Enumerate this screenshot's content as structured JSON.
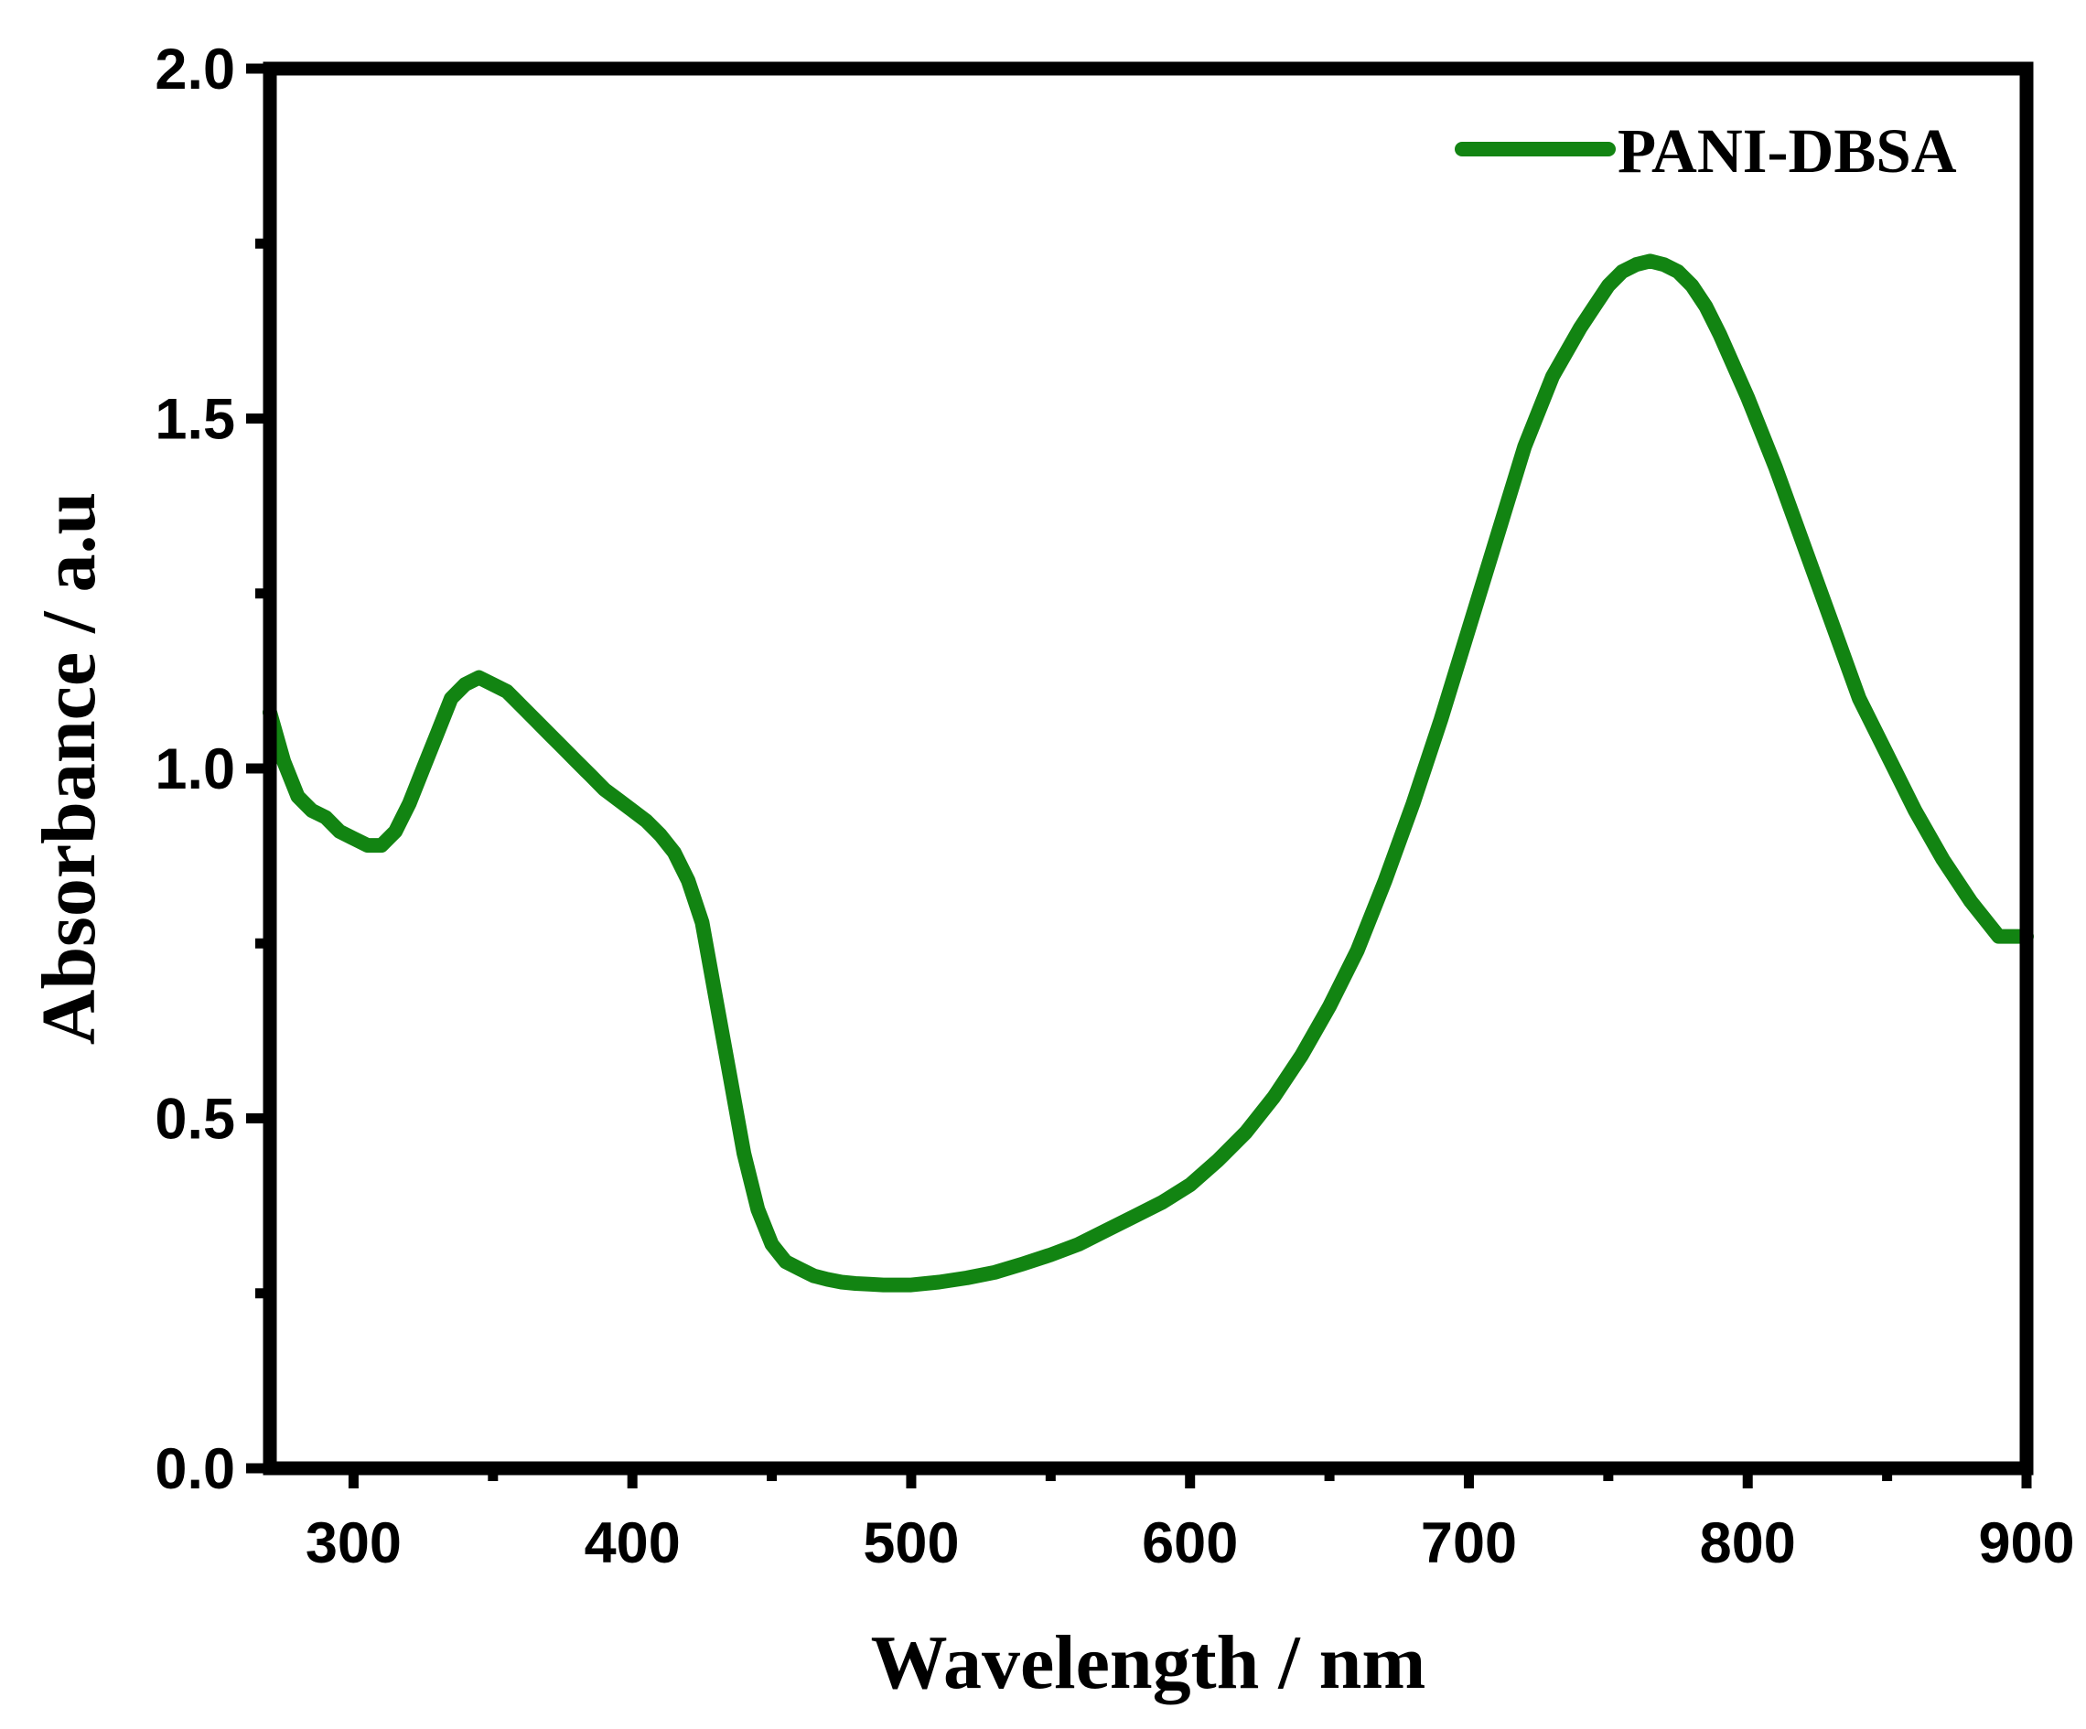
{
  "chart_data": {
    "type": "line",
    "title": "",
    "xlabel": "Wavelength / nm",
    "ylabel": "Absorbance / a.u",
    "xlim": [
      270,
      900
    ],
    "ylim": [
      0.0,
      2.0
    ],
    "x_ticks": [
      300,
      400,
      500,
      600,
      700,
      800,
      900
    ],
    "x_tick_labels": [
      "300",
      "400",
      "500",
      "600",
      "700",
      "800",
      "900"
    ],
    "x_minor_ticks": [
      350,
      450,
      550,
      650,
      750,
      850
    ],
    "y_ticks": [
      0.0,
      0.5,
      1.0,
      1.5,
      2.0
    ],
    "y_tick_labels": [
      "0.0",
      "0.5",
      "1.0",
      "1.5",
      "2.0"
    ],
    "y_minor_ticks": [
      0.25,
      0.75,
      1.25,
      1.75
    ],
    "grid": false,
    "legend_position": "top-right",
    "series": [
      {
        "name": "PANI-DBSA",
        "color": "#128412",
        "x": [
          270,
          275,
          280,
          285,
          290,
          295,
          300,
          305,
          310,
          315,
          320,
          325,
          330,
          335,
          340,
          345,
          350,
          355,
          360,
          365,
          370,
          375,
          380,
          385,
          390,
          395,
          400,
          405,
          410,
          415,
          420,
          425,
          430,
          435,
          440,
          445,
          450,
          455,
          460,
          465,
          470,
          475,
          480,
          485,
          490,
          495,
          500,
          510,
          520,
          530,
          540,
          550,
          560,
          570,
          580,
          590,
          600,
          610,
          620,
          630,
          640,
          650,
          660,
          670,
          680,
          690,
          700,
          710,
          720,
          730,
          740,
          745,
          750,
          755,
          760,
          765,
          770,
          775,
          780,
          785,
          790,
          800,
          810,
          820,
          830,
          840,
          850,
          860,
          870,
          880,
          890,
          900
        ],
        "y": [
          1.08,
          1.01,
          0.96,
          0.94,
          0.93,
          0.91,
          0.9,
          0.89,
          0.89,
          0.91,
          0.95,
          1.0,
          1.05,
          1.1,
          1.12,
          1.13,
          1.12,
          1.11,
          1.09,
          1.07,
          1.05,
          1.03,
          1.01,
          0.99,
          0.97,
          0.955,
          0.94,
          0.925,
          0.905,
          0.88,
          0.84,
          0.78,
          0.67,
          0.56,
          0.45,
          0.37,
          0.32,
          0.295,
          0.285,
          0.275,
          0.27,
          0.266,
          0.264,
          0.263,
          0.262,
          0.262,
          0.262,
          0.266,
          0.272,
          0.28,
          0.292,
          0.305,
          0.32,
          0.34,
          0.36,
          0.38,
          0.405,
          0.44,
          0.48,
          0.53,
          0.59,
          0.66,
          0.74,
          0.84,
          0.95,
          1.07,
          1.2,
          1.33,
          1.46,
          1.56,
          1.63,
          1.66,
          1.69,
          1.71,
          1.72,
          1.725,
          1.72,
          1.71,
          1.69,
          1.66,
          1.62,
          1.53,
          1.43,
          1.32,
          1.21,
          1.1,
          1.02,
          0.94,
          0.87,
          0.81,
          0.76,
          0.76
        ]
      }
    ]
  }
}
